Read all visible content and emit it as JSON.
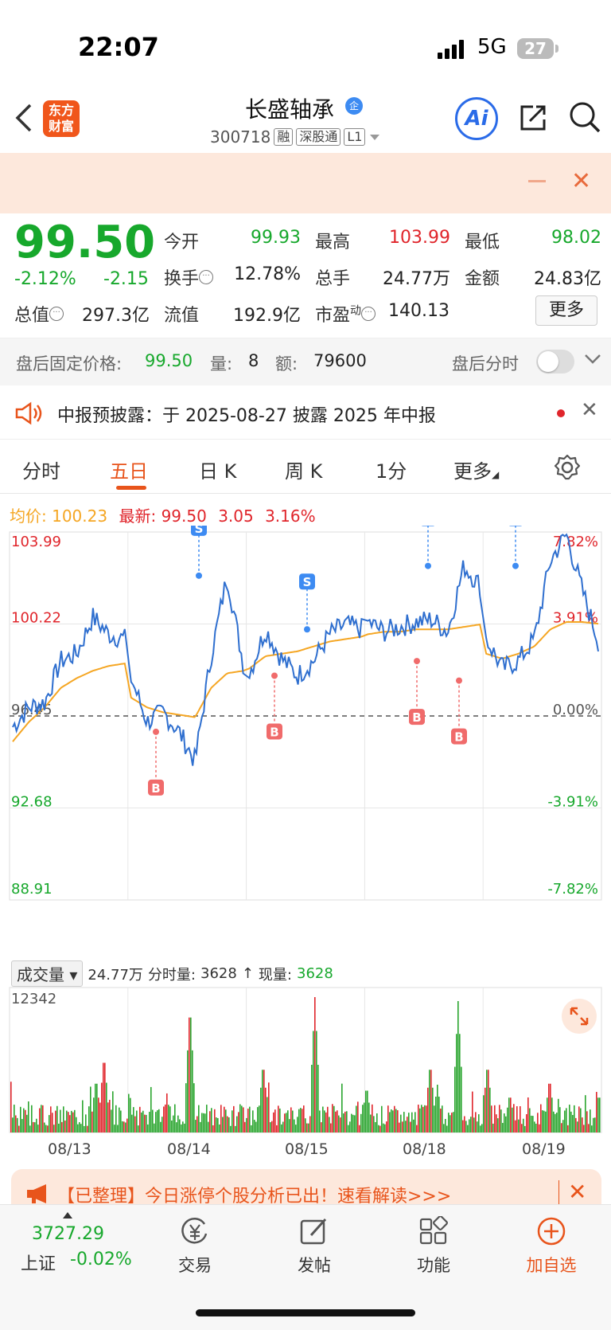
{
  "status_bar": {
    "time": "22:07",
    "network": "5G",
    "battery": "27"
  },
  "header": {
    "logo": "东方财富",
    "title": "长盛轴承",
    "title_badge": "企",
    "code": "300718",
    "tags": [
      "融",
      "深股通",
      "L1"
    ],
    "ai_label": "Ai",
    "icons": [
      "back-icon",
      "share-icon",
      "search-icon"
    ]
  },
  "quote": {
    "price": "99.50",
    "change_pct": "-2.12%",
    "change_val": "-2.15",
    "fields": {
      "open_label": "今开",
      "open": "99.93",
      "high_label": "最高",
      "high": "103.99",
      "low_label": "最低",
      "low": "98.02",
      "turnover_label": "换手",
      "turnover": "12.78%",
      "volume_label": "总手",
      "volume": "24.77万",
      "amount_label": "金额",
      "amount": "24.83亿",
      "mktcap_label": "总值",
      "mktcap": "297.3亿",
      "float_label": "流值",
      "float": "192.9亿",
      "pe_label": "市盈",
      "pe_sup": "动",
      "pe": "140.13"
    },
    "more_label": "更多"
  },
  "after_hours": {
    "label": "盘后固定价格:",
    "price": "99.50",
    "vol_label": "量:",
    "vol": "8",
    "amt_label": "额:",
    "amt": "79600",
    "timeshare_label": "盘后分时"
  },
  "notice": {
    "text": "中报预披露：于 2025-08-27 披露 2025 年中报"
  },
  "tabs": [
    {
      "label": "分时"
    },
    {
      "label": "五日"
    },
    {
      "label": "日 K"
    },
    {
      "label": "周 K"
    },
    {
      "label": "1分"
    },
    {
      "label": "更多"
    }
  ],
  "chart_info": {
    "avg_label": "均价:",
    "avg": "100.23",
    "latest_label": "最新:",
    "latest": "99.50",
    "chg": "3.05",
    "chg_pct": "3.16%"
  },
  "chart_data": {
    "type": "line",
    "x": [
      "08/13",
      "08/14",
      "08/15",
      "08/18",
      "08/19"
    ],
    "y_ticks_left": [
      "103.99",
      "100.22",
      "96.45",
      "92.68",
      "88.91"
    ],
    "y_ticks_right": [
      "7.82%",
      "3.91%",
      "0.00%",
      "-3.91%",
      "-7.82%"
    ],
    "ylim": [
      88.91,
      103.99
    ],
    "base_price": 96.45,
    "series": [],
    "markers": [
      {
        "label": "B",
        "price": 95.8
      },
      {
        "label": "S",
        "price": 102.2
      },
      {
        "label": "B",
        "price": 98.1
      },
      {
        "label": "S",
        "price": 100.0
      },
      {
        "label": "B",
        "price": 98.7
      },
      {
        "label": "S",
        "price": 102.6
      },
      {
        "label": "B",
        "price": 97.9
      },
      {
        "label": "S",
        "price": 102.6
      }
    ],
    "colors": {
      "price": "#2f6fcf",
      "avg": "#f5a623",
      "buy": "#f06b6b",
      "sell": "#3d8bf2"
    }
  },
  "volume": {
    "selector": "成交量",
    "total": "24.77万",
    "timeshare_label": "分时量:",
    "timeshare": "3628",
    "arrow": "↑",
    "current_label": "现量:",
    "current": "3628",
    "max_tick": "12342"
  },
  "ad": {
    "text": "【已整理】今日涨停个股分析已出！速看解读>>>"
  },
  "bottom_nav": {
    "index_value": "3727.29",
    "index_name": "上证",
    "index_chg": "-0.02%",
    "items": [
      {
        "label": "交易",
        "icon": "yen-icon"
      },
      {
        "label": "发帖",
        "icon": "edit-icon"
      },
      {
        "label": "功能",
        "icon": "grid-icon"
      },
      {
        "label": "加自选",
        "icon": "add-circle-icon"
      }
    ]
  }
}
